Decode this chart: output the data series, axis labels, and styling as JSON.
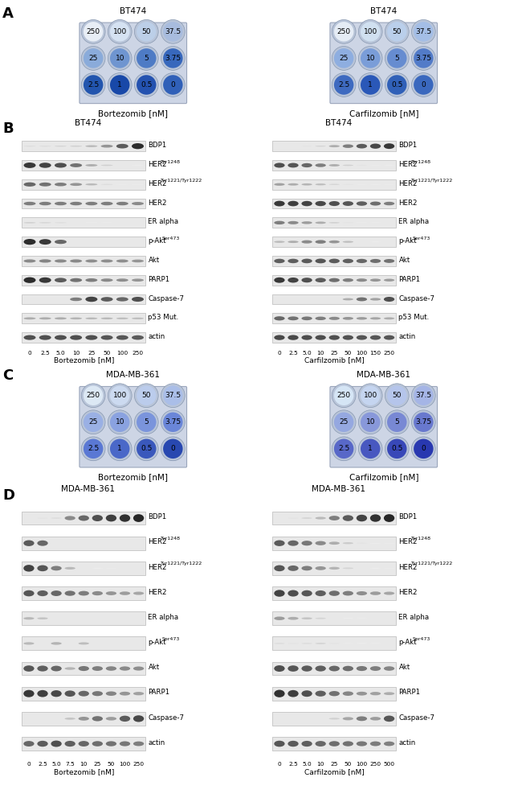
{
  "fig_width": 6.5,
  "fig_height": 9.92,
  "bg_color": "#ffffff",
  "well_plate_values": [
    [
      250,
      100,
      50,
      37.5
    ],
    [
      25,
      10,
      5,
      3.75
    ],
    [
      2.5,
      1,
      0.5,
      0
    ]
  ],
  "wb_labels_B": [
    "BDP1",
    "HER2|Tyr1248",
    "HER2|Tyr1221/Tyr1222",
    "HER2",
    "ER alpha",
    "p-Akt|Ser473",
    "Akt",
    "PARP1",
    "Caspase-7",
    "p53 Mut.",
    "actin"
  ],
  "wb_labels_D": [
    "BDP1",
    "HER2|Tyr1248",
    "HER2|Tyr1221/Tyr1222",
    "HER2",
    "ER alpha",
    "p-Akt|Ser473",
    "Akt",
    "PARP1",
    "Caspase-7",
    "actin"
  ],
  "bt474_bort_ticks": [
    0,
    2.5,
    5.0,
    10,
    25,
    50,
    100,
    250
  ],
  "bt474_carf_ticks": [
    0,
    2.5,
    5.0,
    10,
    25,
    50,
    100,
    150,
    250
  ],
  "mda_bort_ticks": [
    0,
    2.5,
    5.0,
    7.5,
    10,
    25,
    50,
    100,
    250
  ],
  "mda_carf_ticks": [
    0,
    2.5,
    5.0,
    10,
    25,
    50,
    100,
    250,
    500
  ],
  "plate_bg": "#cdd5e5",
  "plate_border": "#9aa5bb",
  "well_outer": "#b8c4d8",
  "well_outer_edge": "#8898b0"
}
